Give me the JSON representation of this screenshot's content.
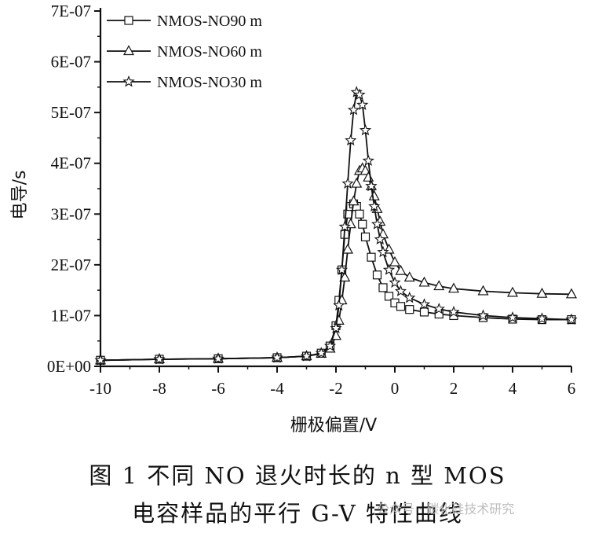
{
  "chart_data": {
    "type": "line",
    "xlabel": "栅极偏置/V",
    "ylabel": "电导/s",
    "xlim": [
      -10,
      6
    ],
    "ylim": [
      0,
      7e-07
    ],
    "x_ticks": [
      "-10",
      "-8",
      "-6",
      "-4",
      "-2",
      "0",
      "2",
      "4",
      "6"
    ],
    "y_ticks": [
      "0E+00",
      "1E-07",
      "2E-07",
      "3E-07",
      "4E-07",
      "5E-07",
      "6E-07",
      "7E-07"
    ],
    "grid": false,
    "legend_position": "top-left",
    "series": [
      {
        "name": "NMOS-NO90 m",
        "marker": "square",
        "x": [
          -10,
          -8,
          -6,
          -4,
          -3,
          -2.5,
          -2.2,
          -2.0,
          -1.9,
          -1.8,
          -1.7,
          -1.6,
          -1.5,
          -1.4,
          -1.3,
          -1.2,
          -1.1,
          -1.0,
          -0.8,
          -0.6,
          -0.4,
          -0.2,
          0,
          0.2,
          0.5,
          1,
          1.5,
          2,
          3,
          4,
          5,
          6
        ],
        "y": [
          1.2e-08,
          1.4e-08,
          1.5e-08,
          1.7e-08,
          2e-08,
          2.6e-08,
          4e-08,
          8e-08,
          1.3e-07,
          1.9e-07,
          2.6e-07,
          3e-07,
          3.15e-07,
          3.2e-07,
          3.15e-07,
          3e-07,
          2.8e-07,
          2.55e-07,
          2.15e-07,
          1.8e-07,
          1.55e-07,
          1.38e-07,
          1.25e-07,
          1.18e-07,
          1.12e-07,
          1.07e-07,
          1.03e-07,
          1e-07,
          9.6e-08,
          9.3e-08,
          9.2e-08,
          9.2e-08
        ]
      },
      {
        "name": "NMOS-NO60 m",
        "marker": "triangle",
        "x": [
          -10,
          -8,
          -6,
          -4,
          -3,
          -2.5,
          -2.2,
          -2.0,
          -1.9,
          -1.8,
          -1.7,
          -1.6,
          -1.5,
          -1.4,
          -1.3,
          -1.2,
          -1.1,
          -1.0,
          -0.9,
          -0.8,
          -0.7,
          -0.6,
          -0.5,
          -0.4,
          -0.2,
          0,
          0.2,
          0.5,
          1,
          1.5,
          2,
          3,
          4,
          5,
          6
        ],
        "y": [
          1.2e-08,
          1.4e-08,
          1.5e-08,
          1.7e-08,
          2e-08,
          2.5e-08,
          3.5e-08,
          6e-08,
          9e-08,
          1.3e-07,
          1.75e-07,
          2.3e-07,
          2.8e-07,
          3.25e-07,
          3.6e-07,
          3.85e-07,
          3.9e-07,
          3.85e-07,
          3.72e-07,
          3.55e-07,
          3.35e-07,
          3.1e-07,
          2.85e-07,
          2.6e-07,
          2.3e-07,
          2.05e-07,
          1.88e-07,
          1.75e-07,
          1.65e-07,
          1.58e-07,
          1.53e-07,
          1.48e-07,
          1.45e-07,
          1.43e-07,
          1.42e-07
        ]
      },
      {
        "name": "NMOS-NO30 m",
        "marker": "star",
        "x": [
          -10,
          -8,
          -6,
          -4,
          -3,
          -2.5,
          -2.2,
          -2.0,
          -1.9,
          -1.8,
          -1.7,
          -1.6,
          -1.5,
          -1.4,
          -1.3,
          -1.2,
          -1.1,
          -1.0,
          -0.9,
          -0.8,
          -0.7,
          -0.6,
          -0.5,
          -0.4,
          -0.2,
          0,
          0.2,
          0.5,
          1,
          1.5,
          2,
          3,
          4,
          5,
          6
        ],
        "y": [
          1.2e-08,
          1.4e-08,
          1.5e-08,
          1.7e-08,
          2e-08,
          2.6e-08,
          4e-08,
          7.5e-08,
          1.2e-07,
          1.9e-07,
          2.75e-07,
          3.6e-07,
          4.45e-07,
          5.05e-07,
          5.4e-07,
          5.35e-07,
          5.15e-07,
          4.65e-07,
          4.05e-07,
          3.55e-07,
          3.15e-07,
          2.8e-07,
          2.5e-07,
          2.25e-07,
          1.9e-07,
          1.65e-07,
          1.48e-07,
          1.35e-07,
          1.22e-07,
          1.13e-07,
          1.07e-07,
          1e-07,
          9.6e-08,
          9.4e-08,
          9.2e-08
        ]
      }
    ]
  },
  "caption": {
    "line1": "图 1   不同 NO 退火时长的 n 型 MOS",
    "line2": "电容样品的平行 G-V 特性曲线"
  },
  "watermark": "公众号 · 碳化硅技术研究",
  "colors": {
    "ink": "#111111",
    "watermark": "#bdbdbd"
  }
}
